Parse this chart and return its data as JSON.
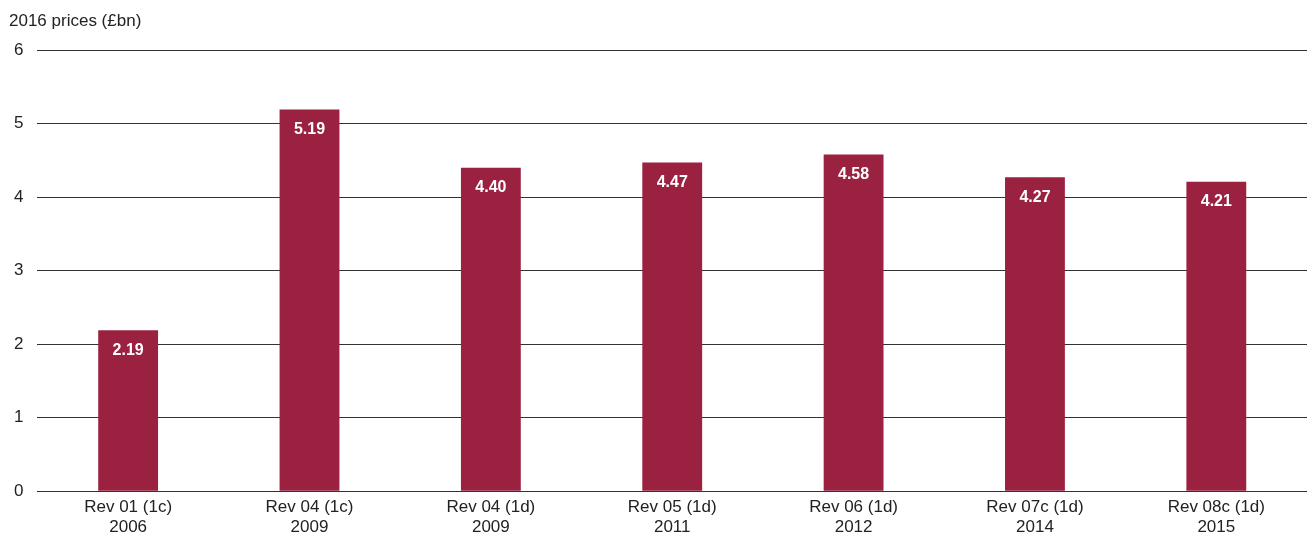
{
  "chart_data": {
    "type": "bar",
    "ylabel": "2016 prices (£bn)",
    "categories": [
      "Rev 01 (1c)\n2006",
      "Rev 04 (1c)\n2009",
      "Rev 04 (1d)\n2009",
      "Rev 05 (1d)\n2011",
      "Rev 06 (1d)\n2012",
      "Rev 07c (1d)\n2014",
      "Rev 08c (1d)\n2015"
    ],
    "values": [
      2.19,
      5.19,
      4.4,
      4.47,
      4.58,
      4.27,
      4.21
    ],
    "value_labels": [
      "2.19",
      "5.19",
      "4.40",
      "4.47",
      "4.58",
      "4.27",
      "4.21"
    ],
    "color": "#9b2140",
    "ylim": [
      0,
      6
    ],
    "yticks": [
      0,
      1,
      2,
      3,
      4,
      5,
      6
    ],
    "grid": "y",
    "legend": false
  }
}
